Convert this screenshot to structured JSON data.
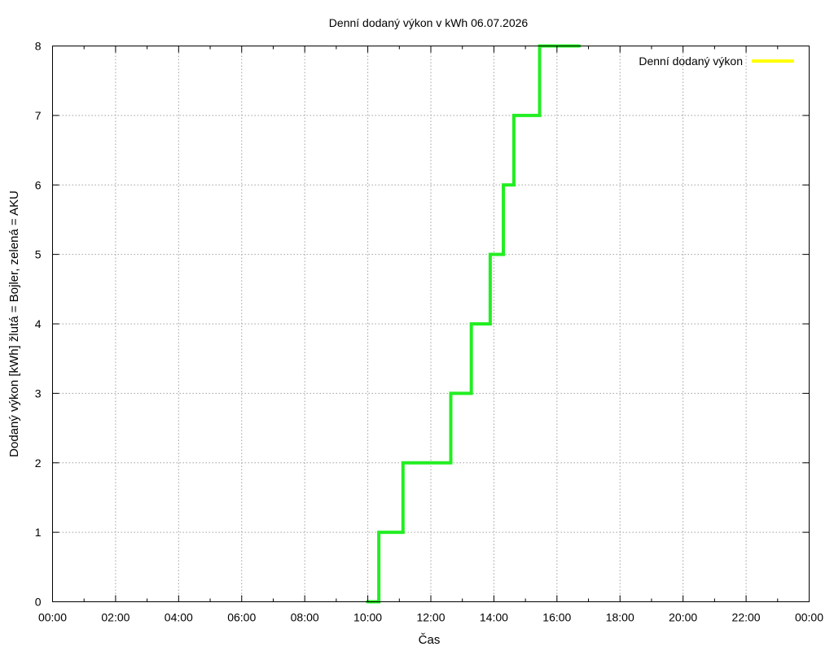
{
  "chart_data": {
    "type": "line",
    "title": "Denní dodaný výkon v kWh 06.07.2026",
    "xlabel": "Čas",
    "ylabel": "Dodaný výkon [kWh]  žlutá = Bojler, zelená = AKU",
    "xlim": [
      "00:00",
      "24:00"
    ],
    "ylim": [
      0,
      8
    ],
    "x_ticks": [
      "00:00",
      "02:00",
      "04:00",
      "06:00",
      "08:00",
      "10:00",
      "12:00",
      "14:00",
      "16:00",
      "18:00",
      "20:00",
      "22:00",
      "00:00"
    ],
    "y_ticks": [
      "0",
      "1",
      "2",
      "3",
      "4",
      "5",
      "6",
      "7",
      "8"
    ],
    "grid": true,
    "legend_position": "top-right",
    "series": [
      {
        "name": "Denní dodaný výkon",
        "color": "#ffff00",
        "style": "step",
        "points": []
      },
      {
        "color": "#22ee22",
        "style": "step",
        "points": [
          {
            "x": "09:59",
            "y": 0
          },
          {
            "x": "10:20",
            "y": 0
          },
          {
            "x": "10:21",
            "y": 1
          },
          {
            "x": "10:58",
            "y": 1
          },
          {
            "x": "11:07",
            "y": 2
          },
          {
            "x": "11:26",
            "y": 2
          },
          {
            "x": "11:48",
            "y": 2
          },
          {
            "x": "12:02",
            "y": 2
          },
          {
            "x": "12:18",
            "y": 2
          },
          {
            "x": "12:37",
            "y": 2
          },
          {
            "x": "12:38",
            "y": 3
          },
          {
            "x": "13:16",
            "y": 3
          },
          {
            "x": "13:17",
            "y": 4
          },
          {
            "x": "13:52",
            "y": 4
          },
          {
            "x": "13:53",
            "y": 5
          },
          {
            "x": "14:17",
            "y": 5
          },
          {
            "x": "14:18",
            "y": 6
          },
          {
            "x": "14:37",
            "y": 6
          },
          {
            "x": "14:38",
            "y": 7
          },
          {
            "x": "15:19",
            "y": 7
          },
          {
            "x": "15:27",
            "y": 8
          },
          {
            "x": "16:43",
            "y": 8
          }
        ]
      }
    ]
  }
}
